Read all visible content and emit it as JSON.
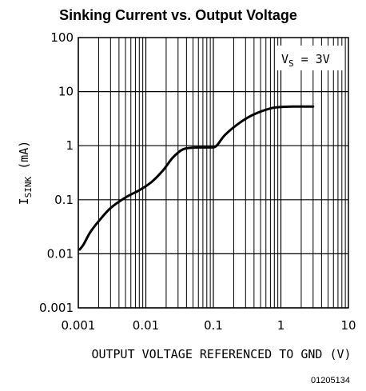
{
  "chart_data": {
    "type": "line",
    "title": "Sinking Current vs. Output Voltage",
    "xlabel": "OUTPUT VOLTAGE REFERENCED TO GND (V)",
    "ylabel_main": "I",
    "ylabel_sub": "SINK",
    "ylabel_unit": "(mA)",
    "x_scale": "log",
    "y_scale": "log",
    "xlim": [
      0.001,
      10
    ],
    "ylim": [
      0.001,
      100
    ],
    "grid": true,
    "x_ticks": [
      "0.001",
      "0.01",
      "0.1",
      "1",
      "10"
    ],
    "y_ticks": [
      "0.001",
      "0.01",
      "0.1",
      "1",
      "10",
      "100"
    ],
    "annotation": {
      "main": "V",
      "sub": "S",
      "rest": " = 3V"
    },
    "figure_id": "01205134",
    "series": [
      {
        "x": [
          0.00105,
          0.0012,
          0.0015,
          0.002,
          0.003,
          0.005,
          0.008,
          0.012,
          0.018,
          0.025,
          0.035,
          0.05,
          0.07,
          0.09,
          0.11,
          0.15,
          0.25,
          0.4,
          0.7,
          1.0,
          1.5,
          3.0
        ],
        "y": [
          0.012,
          0.015,
          0.025,
          0.04,
          0.07,
          0.11,
          0.15,
          0.21,
          0.35,
          0.6,
          0.85,
          0.92,
          0.93,
          0.93,
          0.98,
          1.6,
          2.7,
          3.8,
          4.9,
          5.2,
          5.3,
          5.3
        ]
      }
    ]
  }
}
